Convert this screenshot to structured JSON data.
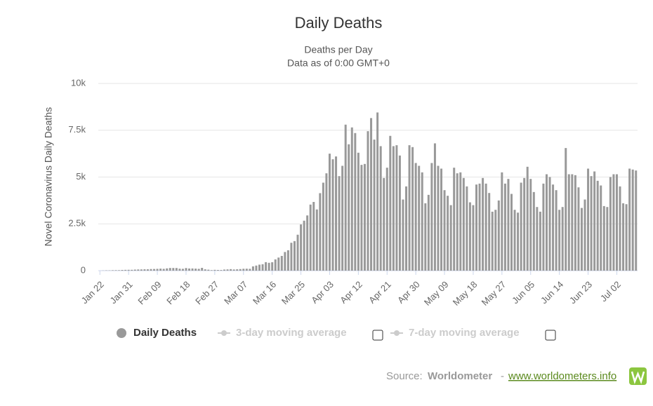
{
  "chart_data": {
    "type": "bar",
    "title": "Daily Deaths",
    "subtitle": [
      "Deaths per Day",
      "Data as of 0:00 GMT+0"
    ],
    "y_label": "Novel Coronavirus Daily Deaths",
    "categories": [
      "Jan 22",
      null,
      null,
      null,
      null,
      null,
      null,
      null,
      null,
      "Jan 31",
      null,
      null,
      null,
      null,
      null,
      null,
      null,
      null,
      "Feb 09",
      null,
      null,
      null,
      null,
      null,
      null,
      null,
      null,
      "Feb 18",
      null,
      null,
      null,
      null,
      null,
      null,
      null,
      null,
      "Feb 27",
      null,
      null,
      null,
      null,
      null,
      null,
      null,
      null,
      "Mar 07",
      null,
      null,
      null,
      null,
      null,
      null,
      null,
      null,
      "Mar 16",
      null,
      null,
      null,
      null,
      null,
      null,
      null,
      null,
      "Mar 25",
      null,
      null,
      null,
      null,
      null,
      null,
      null,
      null,
      "Apr 03",
      null,
      null,
      null,
      null,
      null,
      null,
      null,
      null,
      "Apr 12",
      null,
      null,
      null,
      null,
      null,
      null,
      null,
      null,
      "Apr 21",
      null,
      null,
      null,
      null,
      null,
      null,
      null,
      null,
      "Apr 30",
      null,
      null,
      null,
      null,
      null,
      null,
      null,
      null,
      "May 09",
      null,
      null,
      null,
      null,
      null,
      null,
      null,
      null,
      "May 18",
      null,
      null,
      null,
      null,
      null,
      null,
      null,
      null,
      "May 27",
      null,
      null,
      null,
      null,
      null,
      null,
      null,
      null,
      "Jun 05",
      null,
      null,
      null,
      null,
      null,
      null,
      null,
      null,
      "Jun 14",
      null,
      null,
      null,
      null,
      null,
      null,
      null,
      null,
      "Jun 23",
      null,
      null,
      null,
      null,
      null,
      null,
      null,
      null,
      "Jul 02",
      null,
      null,
      null,
      null,
      null,
      null
    ],
    "series": [
      {
        "name": "Daily Deaths",
        "color": "#999999",
        "values": [
          0,
          8,
          16,
          15,
          24,
          26,
          26,
          38,
          43,
          46,
          45,
          57,
          64,
          66,
          73,
          73,
          86,
          89,
          97,
          108,
          97,
          121,
          143,
          143,
          142,
          106,
          98,
          139,
          115,
          118,
          109,
          97,
          150,
          71,
          52,
          29,
          44,
          37,
          35,
          58,
          67,
          81,
          63,
          72,
          84,
          100,
          104,
          98,
          229,
          272,
          321,
          345,
          455,
          420,
          450,
          601,
          700,
          788,
          996,
          1090,
          1490,
          1580,
          1920,
          2470,
          2670,
          2950,
          3530,
          3670,
          3270,
          4140,
          4700,
          5200,
          6250,
          5950,
          6100,
          5050,
          5600,
          7800,
          6750,
          7650,
          7350,
          6300,
          5650,
          5700,
          7450,
          8150,
          7000,
          8450,
          6650,
          4950,
          5500,
          7200,
          6650,
          6700,
          6150,
          3800,
          4500,
          6700,
          6600,
          5750,
          5600,
          5250,
          3600,
          4050,
          5750,
          6800,
          5600,
          5450,
          4300,
          4000,
          3500,
          5500,
          5200,
          5250,
          4950,
          4500,
          3650,
          3500,
          4600,
          4650,
          4950,
          4650,
          4150,
          3150,
          3250,
          3750,
          5250,
          4650,
          4900,
          4100,
          3250,
          3100,
          4700,
          4950,
          5550,
          4900,
          4200,
          3400,
          3150,
          4650,
          5150,
          5000,
          4600,
          4300,
          3250,
          3400,
          6550,
          5150,
          5150,
          5100,
          4450,
          3350,
          3800,
          5450,
          5050,
          5300,
          4800,
          4550,
          3450,
          3400,
          5000,
          5150,
          5150,
          4500,
          3600,
          3550,
          5450,
          5400,
          5350
        ]
      }
    ],
    "inactive_legend": [
      "3-day moving average",
      "7-day moving average"
    ],
    "inactive_color": "#cccccc",
    "ylim": [
      0,
      10000
    ],
    "yticks": [
      0,
      {
        "value": 2500,
        "label": "2.5k"
      },
      {
        "value": 5000,
        "label": "5k"
      },
      {
        "value": 7500,
        "label": "7.5k"
      },
      {
        "value": 10000,
        "label": "10k"
      }
    ],
    "grid": true
  },
  "source": {
    "label": "Source:",
    "name": "Worldometer",
    "separator": "-",
    "link": "www.worldometers.info"
  }
}
